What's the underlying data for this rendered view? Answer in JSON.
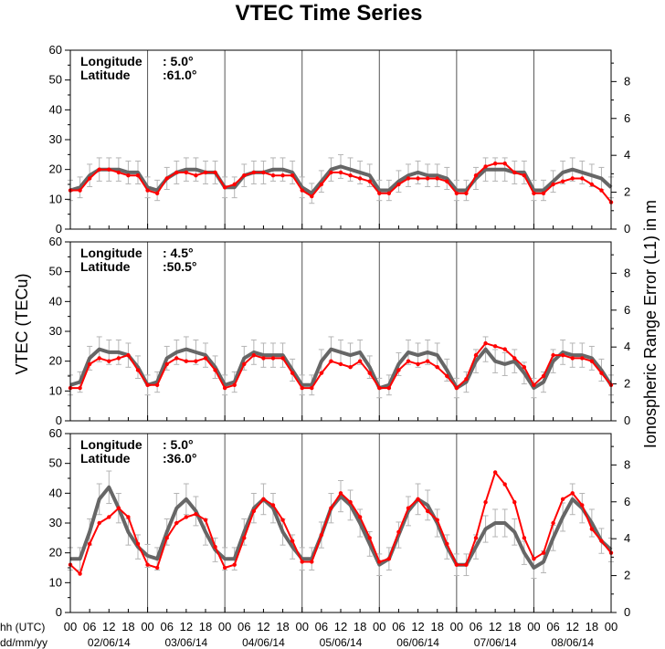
{
  "page": {
    "title": "VTEC Time Series"
  },
  "axes": {
    "left_label": "VTEC (TECu)",
    "right_label": "Ionospheric Range Error (L1) in m",
    "hour_row_label": "hh (UTC)",
    "date_row_label": "dd/mm/yy",
    "hour_ticks": [
      "00",
      "06",
      "12",
      "18"
    ],
    "final_hour_tick": "00",
    "dates": [
      "02/06/14",
      "03/06/14",
      "04/06/14",
      "05/06/14",
      "06/06/14",
      "07/06/14",
      "08/06/14"
    ],
    "y_left_ticks": [
      "0",
      "10",
      "20",
      "30",
      "40",
      "50",
      "60"
    ],
    "y_right_ticks": [
      "0",
      "2",
      "4",
      "6",
      "8"
    ]
  },
  "colors": {
    "measured": "#ff0000",
    "model": "#666666",
    "error_bar": "#b4b4b4",
    "frame": "#000000",
    "day_divider": "#555555"
  },
  "chart_data": [
    {
      "type": "line",
      "longitude_label": "Longitude",
      "longitude_value": ":   5.0°",
      "latitude_label": "Latitude",
      "latitude_value": ":61.0°",
      "x_unit": "hour since 02/06/14 00 UTC",
      "x": [
        0,
        3,
        6,
        9,
        12,
        15,
        18,
        21,
        24,
        27,
        30,
        33,
        36,
        39,
        42,
        45,
        48,
        51,
        54,
        57,
        60,
        63,
        66,
        69,
        72,
        75,
        78,
        81,
        84,
        87,
        90,
        93,
        96,
        99,
        102,
        105,
        108,
        111,
        114,
        117,
        120,
        123,
        126,
        129,
        132,
        135,
        138,
        141,
        144,
        147,
        150,
        153,
        156,
        159,
        162,
        165,
        168
      ],
      "ylim": [
        0,
        60
      ],
      "y2lim": [
        0,
        9.7
      ],
      "series": [
        {
          "role": "measured",
          "values": [
            13,
            13,
            17,
            20,
            20,
            19,
            18,
            18,
            13,
            12,
            17,
            19,
            19,
            18,
            19,
            19,
            14,
            15,
            18,
            19,
            19,
            18,
            18,
            18,
            13,
            11,
            15,
            19,
            19,
            18,
            17,
            16,
            12,
            12,
            15,
            17,
            17,
            17,
            17,
            16,
            12,
            12,
            18,
            21,
            22,
            22,
            19,
            18,
            12,
            12,
            15,
            16,
            17,
            17,
            15,
            13,
            9
          ]
        },
        {
          "role": "model",
          "values": [
            13,
            14,
            18,
            20,
            20,
            20,
            19,
            19,
            14,
            13,
            17,
            19,
            20,
            20,
            19,
            19,
            14,
            14,
            18,
            19,
            19,
            20,
            20,
            19,
            14,
            12,
            16,
            20,
            21,
            20,
            19,
            18,
            13,
            13,
            16,
            18,
            19,
            18,
            18,
            17,
            13,
            13,
            17,
            20,
            20,
            20,
            19,
            19,
            13,
            13,
            16,
            19,
            20,
            19,
            18,
            17,
            14
          ]
        }
      ]
    },
    {
      "type": "line",
      "longitude_label": "Longitude",
      "longitude_value": ":   4.5°",
      "latitude_label": "Latitude",
      "latitude_value": ":50.5°",
      "x_unit": "hour since 02/06/14 00 UTC",
      "x": [
        0,
        3,
        6,
        9,
        12,
        15,
        18,
        21,
        24,
        27,
        30,
        33,
        36,
        39,
        42,
        45,
        48,
        51,
        54,
        57,
        60,
        63,
        66,
        69,
        72,
        75,
        78,
        81,
        84,
        87,
        90,
        93,
        96,
        99,
        102,
        105,
        108,
        111,
        114,
        117,
        120,
        123,
        126,
        129,
        132,
        135,
        138,
        141,
        144,
        147,
        150,
        153,
        156,
        159,
        162,
        165,
        168
      ],
      "ylim": [
        0,
        60
      ],
      "y2lim": [
        0,
        9.7
      ],
      "series": [
        {
          "role": "measured",
          "values": [
            11,
            11,
            19,
            21,
            20,
            21,
            22,
            17,
            12,
            12,
            19,
            21,
            20,
            20,
            21,
            17,
            11,
            12,
            19,
            22,
            21,
            21,
            21,
            16,
            11,
            11,
            16,
            20,
            19,
            18,
            20,
            16,
            11,
            11,
            17,
            20,
            19,
            20,
            18,
            15,
            11,
            14,
            22,
            26,
            25,
            24,
            21,
            18,
            12,
            15,
            22,
            22,
            21,
            21,
            20,
            16,
            12
          ]
        },
        {
          "role": "model",
          "values": [
            12,
            13,
            21,
            24,
            23,
            23,
            22,
            18,
            12,
            13,
            21,
            23,
            24,
            23,
            22,
            18,
            12,
            13,
            21,
            23,
            22,
            22,
            22,
            17,
            12,
            12,
            20,
            24,
            23,
            22,
            23,
            18,
            11,
            12,
            19,
            23,
            22,
            23,
            22,
            17,
            11,
            13,
            20,
            24,
            20,
            19,
            20,
            16,
            11,
            13,
            20,
            23,
            22,
            22,
            21,
            17,
            12
          ]
        }
      ]
    },
    {
      "type": "line",
      "longitude_label": "Longitude",
      "longitude_value": ":   5.0°",
      "latitude_label": "Latitude",
      "latitude_value": ":36.0°",
      "x_unit": "hour since 02/06/14 00 UTC",
      "x": [
        0,
        3,
        6,
        9,
        12,
        15,
        18,
        21,
        24,
        27,
        30,
        33,
        36,
        39,
        42,
        45,
        48,
        51,
        54,
        57,
        60,
        63,
        66,
        69,
        72,
        75,
        78,
        81,
        84,
        87,
        90,
        93,
        96,
        99,
        102,
        105,
        108,
        111,
        114,
        117,
        120,
        123,
        126,
        129,
        132,
        135,
        138,
        141,
        144,
        147,
        150,
        153,
        156,
        159,
        162,
        165,
        168
      ],
      "ylim": [
        0,
        60
      ],
      "y2lim": [
        0,
        9.7
      ],
      "series": [
        {
          "role": "measured",
          "values": [
            16,
            13,
            23,
            30,
            32,
            35,
            32,
            23,
            16,
            15,
            25,
            30,
            32,
            33,
            31,
            22,
            15,
            16,
            25,
            34,
            38,
            36,
            31,
            24,
            17,
            17,
            26,
            35,
            40,
            37,
            32,
            25,
            17,
            18,
            27,
            35,
            38,
            34,
            31,
            23,
            16,
            16,
            25,
            37,
            47,
            43,
            37,
            25,
            18,
            20,
            30,
            38,
            40,
            36,
            28,
            24,
            20
          ]
        },
        {
          "role": "model",
          "values": [
            18,
            18,
            27,
            38,
            42,
            35,
            27,
            22,
            19,
            18,
            27,
            35,
            38,
            34,
            27,
            21,
            18,
            18,
            27,
            35,
            38,
            35,
            27,
            22,
            18,
            18,
            26,
            35,
            39,
            36,
            30,
            23,
            16,
            18,
            26,
            34,
            38,
            36,
            30,
            22,
            16,
            16,
            22,
            28,
            30,
            30,
            27,
            20,
            15,
            17,
            25,
            32,
            38,
            35,
            30,
            24,
            21
          ]
        }
      ]
    }
  ]
}
